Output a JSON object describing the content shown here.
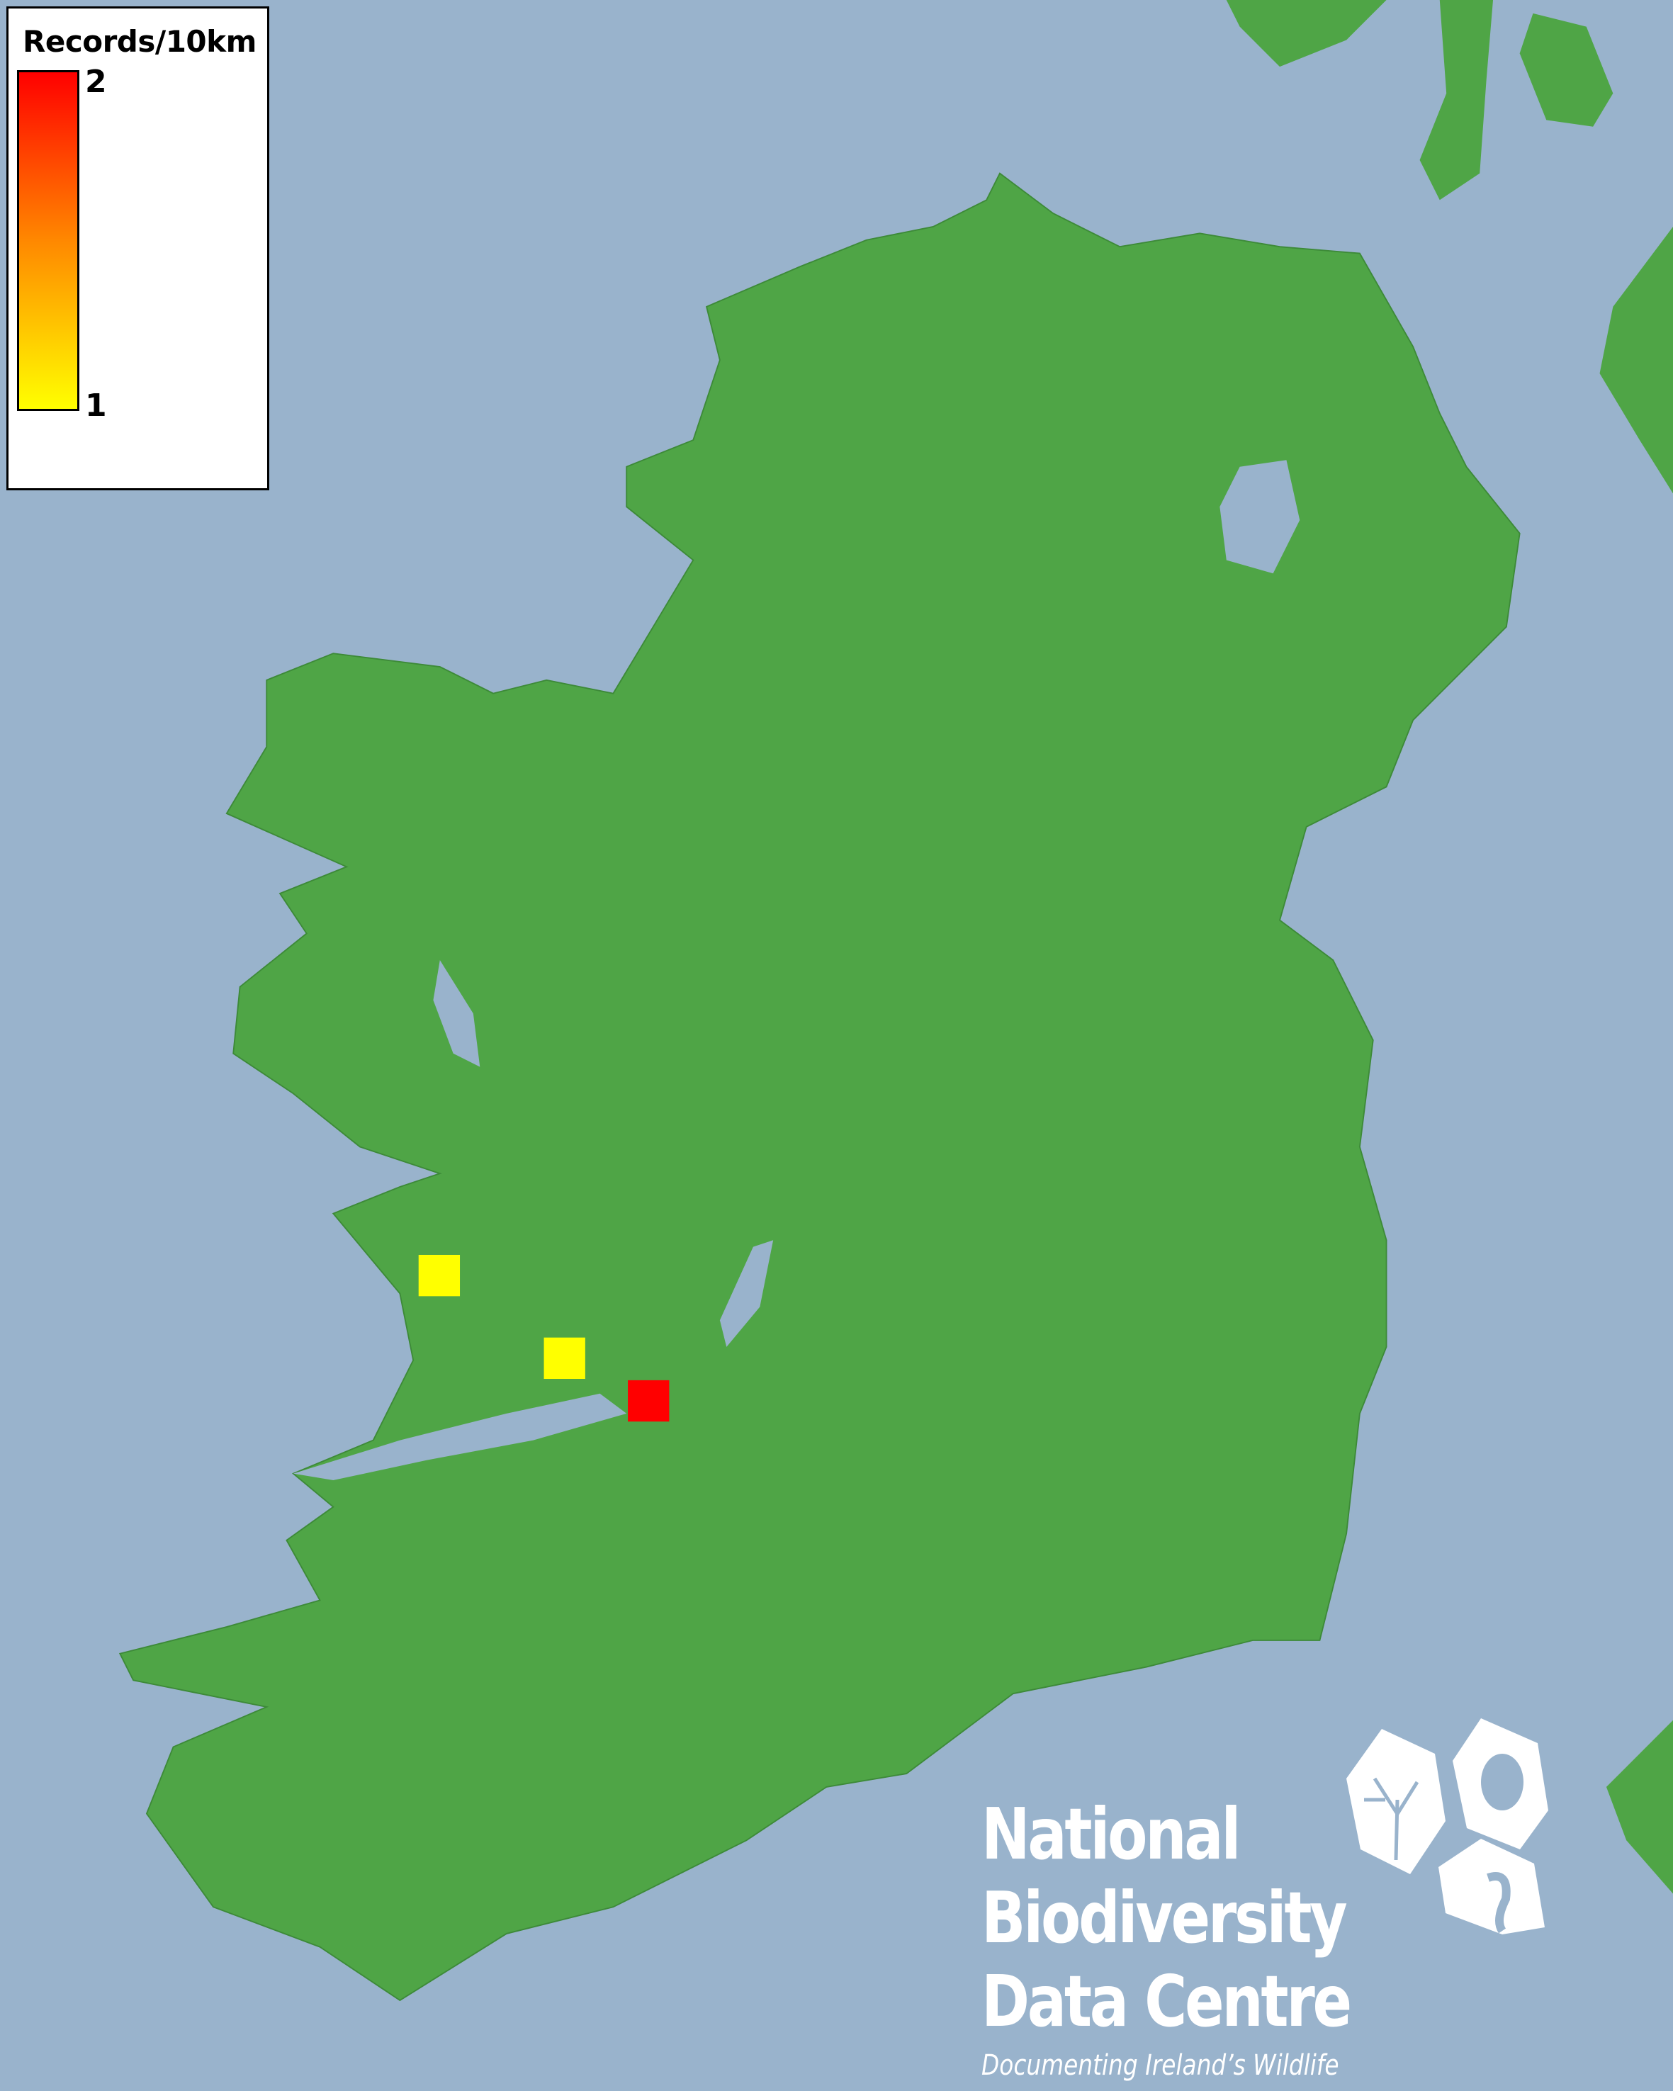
{
  "legend": {
    "title": "Records/10km",
    "max_label": "2",
    "min_label": "1",
    "gradient": {
      "max_color": "#ff0000",
      "mid_color": "#ff8800",
      "min_color": "#ffff00"
    }
  },
  "records": [
    {
      "value": 1,
      "color": "#ffff00"
    },
    {
      "value": 1,
      "color": "#ffff00"
    },
    {
      "value": 2,
      "color": "#ff0000"
    }
  ],
  "colors": {
    "sea": "#99b3cc",
    "land": "#4fa546"
  },
  "logo": {
    "line1": "National",
    "line2": "Biodiversity",
    "line3": "Data Centre",
    "tagline": "Documenting Ireland’s Wildlife"
  }
}
